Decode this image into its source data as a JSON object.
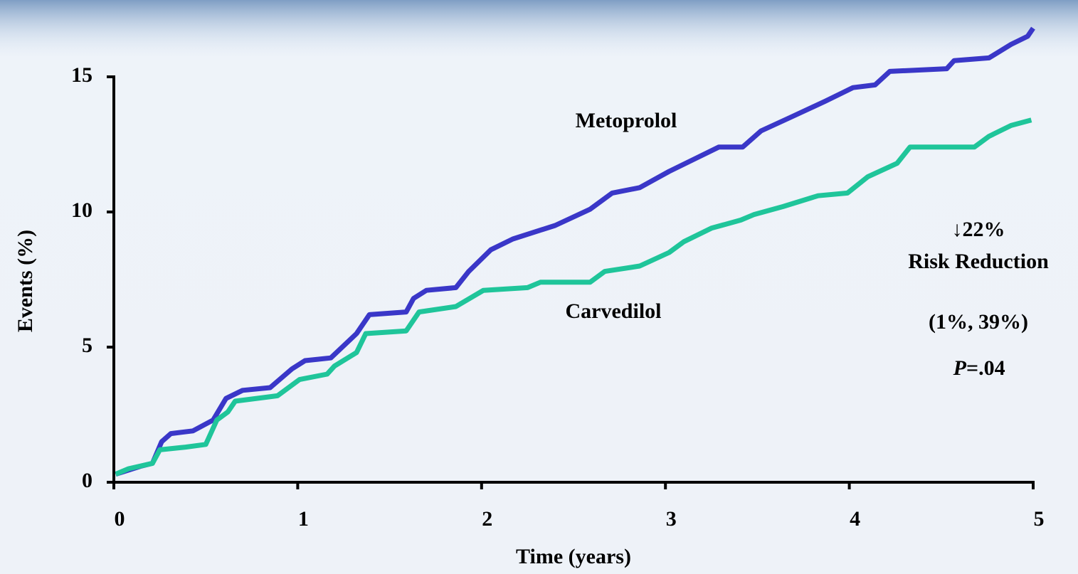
{
  "chart_data": {
    "type": "line",
    "xlabel": "Time (years)",
    "ylabel": "Events (%)",
    "xlim": [
      0,
      5
    ],
    "xticks": [
      0,
      1,
      2,
      3,
      4,
      5
    ],
    "ylim": [
      0,
      15
    ],
    "yticks": [
      0,
      5,
      10,
      15
    ],
    "series": [
      {
        "name": "Metoprolol",
        "color": "#3a37c8",
        "x": [
          0.01,
          0.15,
          0.21,
          0.26,
          0.31,
          0.43,
          0.54,
          0.61,
          0.7,
          0.85,
          0.97,
          1.04,
          1.18,
          1.32,
          1.39,
          1.59,
          1.63,
          1.7,
          1.86,
          1.93,
          2.05,
          2.17,
          2.4,
          2.59,
          2.71,
          2.86,
          3.02,
          3.17,
          3.29,
          3.42,
          3.52,
          3.68,
          3.87,
          4.02,
          4.14,
          4.22,
          4.53,
          4.57,
          4.76,
          4.88,
          4.97,
          5.0
        ],
        "values": [
          0.3,
          0.6,
          0.7,
          1.5,
          1.8,
          1.9,
          2.3,
          3.1,
          3.4,
          3.5,
          4.2,
          4.5,
          4.6,
          5.5,
          6.2,
          6.3,
          6.8,
          7.1,
          7.2,
          7.8,
          8.6,
          9.0,
          9.5,
          10.1,
          10.7,
          10.9,
          11.5,
          12.0,
          12.4,
          12.4,
          13.0,
          13.5,
          14.1,
          14.6,
          14.7,
          15.2,
          15.3,
          15.6,
          15.7,
          16.2,
          16.5,
          16.8
        ]
      },
      {
        "name": "Carvedilol",
        "color": "#1fc59a",
        "x": [
          0.01,
          0.08,
          0.21,
          0.25,
          0.39,
          0.5,
          0.56,
          0.62,
          0.66,
          0.89,
          1.01,
          1.16,
          1.2,
          1.32,
          1.37,
          1.59,
          1.66,
          1.86,
          2.01,
          2.25,
          2.32,
          2.59,
          2.67,
          2.86,
          3.02,
          3.1,
          3.25,
          3.41,
          3.48,
          3.64,
          3.83,
          3.99,
          4.1,
          4.26,
          4.33,
          4.68,
          4.76,
          4.88,
          4.99
        ],
        "values": [
          0.3,
          0.5,
          0.7,
          1.2,
          1.3,
          1.4,
          2.3,
          2.6,
          3.0,
          3.2,
          3.8,
          4.0,
          4.3,
          4.8,
          5.5,
          5.6,
          6.3,
          6.5,
          7.1,
          7.2,
          7.4,
          7.4,
          7.8,
          8.0,
          8.5,
          8.9,
          9.4,
          9.7,
          9.9,
          10.2,
          10.6,
          10.7,
          11.3,
          11.8,
          12.4,
          12.4,
          12.8,
          13.2,
          13.4
        ]
      }
    ],
    "annotations": [
      "↓22%",
      "Risk Reduction",
      "(1%, 39%)",
      "P",
      "=.04"
    ]
  }
}
